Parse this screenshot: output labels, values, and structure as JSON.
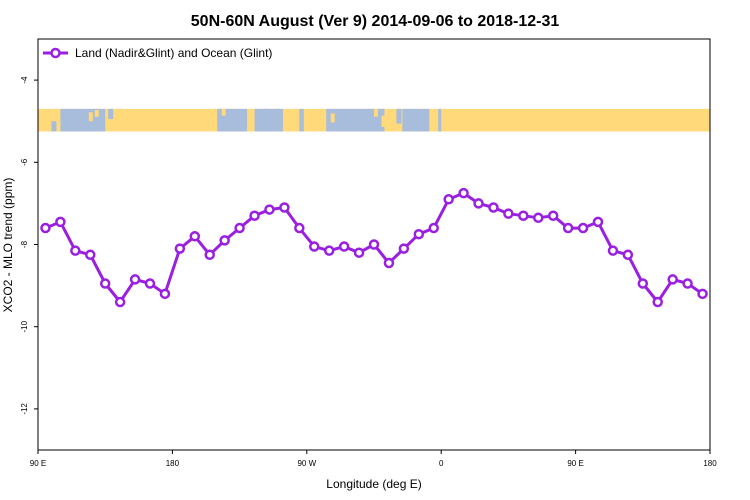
{
  "chart_data": {
    "type": "line",
    "title": "50N-60N August (Ver 9)   2014-09-06 to 2018-12-31",
    "xlabel": "Longitude (deg E)",
    "ylabel": "XCO2 - MLO trend (ppm)",
    "xlim": [
      90,
      540
    ],
    "ylim": [
      -13,
      -3
    ],
    "y_reversed": false,
    "x_ticks": [
      {
        "value": 90,
        "label": "90 E"
      },
      {
        "value": 180,
        "label": "180"
      },
      {
        "value": 270,
        "label": "90 W"
      },
      {
        "value": 360,
        "label": "0"
      },
      {
        "value": 450,
        "label": "90 E"
      },
      {
        "value": 540,
        "label": "180"
      }
    ],
    "y_ticks": [
      {
        "value": -4,
        "label": "-4"
      },
      {
        "value": -6,
        "label": "-6"
      },
      {
        "value": -8,
        "label": "-8"
      },
      {
        "value": -10,
        "label": "-10"
      },
      {
        "value": -12,
        "label": "-12"
      }
    ],
    "grid": false,
    "legend_position": "top-left",
    "series": [
      {
        "name": "Land (Nadir&Glint) and Ocean (Glint)",
        "color": "#9a1fe0",
        "x": [
          95,
          105,
          115,
          125,
          135,
          145,
          155,
          165,
          175,
          185,
          195,
          205,
          215,
          225,
          235,
          245,
          255,
          265,
          275,
          285,
          295,
          305,
          315,
          325,
          335,
          345,
          355,
          365,
          375,
          385,
          395,
          405,
          415,
          425,
          435,
          445,
          455,
          465,
          475,
          485,
          495,
          505,
          515,
          525,
          535
        ],
        "y": [
          -7.6,
          -7.45,
          -8.15,
          -8.25,
          -8.95,
          -9.4,
          -8.85,
          -8.95,
          -9.2,
          -8.1,
          -7.8,
          -8.25,
          -7.9,
          -7.6,
          -7.3,
          -7.15,
          -7.1,
          -7.6,
          -8.05,
          -8.15,
          -8.05,
          -8.2,
          -8.0,
          -8.45,
          -8.1,
          -7.75,
          -7.6,
          -6.9,
          -6.75,
          -7.0,
          -7.1,
          -7.25,
          -7.3,
          -7.35,
          -7.3,
          -7.6,
          -7.6,
          -7.45,
          -8.15,
          -8.25,
          -8.95,
          -9.4,
          -8.85,
          -8.95,
          -9.2
        ]
      }
    ],
    "map_strip": {
      "y_range": [
        -4.7,
        -5.25
      ],
      "land_color": "#ffd97a",
      "ocean_color": "#a8bcdb"
    }
  }
}
